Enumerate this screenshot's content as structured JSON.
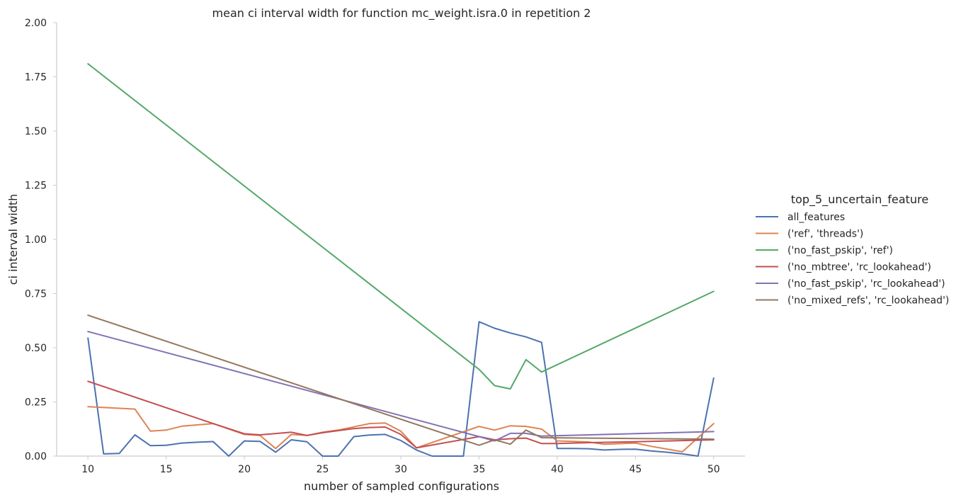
{
  "chart_data": {
    "type": "line",
    "title": "mean ci interval width for function mc_weight.isra.0 in repetition 2",
    "xlabel": "number of sampled configurations",
    "ylabel": "ci interval width",
    "xlim": [
      8,
      52
    ],
    "ylim": [
      0,
      2.0
    ],
    "x_ticks": [
      10,
      15,
      20,
      25,
      30,
      35,
      40,
      45,
      50
    ],
    "x_tick_labels": [
      "10",
      "15",
      "20",
      "25",
      "30",
      "35",
      "40",
      "45",
      "50"
    ],
    "y_ticks": [
      0,
      0.25,
      0.5,
      0.75,
      1.0,
      1.25,
      1.5,
      1.75,
      2.0
    ],
    "y_tick_labels": [
      "0.00",
      "0.25",
      "0.50",
      "0.75",
      "1.00",
      "1.25",
      "1.50",
      "1.75",
      "2.00"
    ],
    "grid": false,
    "legend": {
      "title": "top_5_uncertain_feature",
      "placement": "right"
    },
    "series": [
      {
        "name": "all_features",
        "color": "#4c72b0",
        "x": [
          10,
          11,
          12,
          13,
          14,
          15,
          16,
          17,
          18,
          19,
          20,
          21,
          22,
          23,
          24,
          25,
          26,
          27,
          28,
          29,
          30,
          31,
          32,
          33,
          34,
          35,
          36,
          37,
          38,
          39,
          40,
          41,
          42,
          43,
          44,
          45,
          46,
          47,
          48,
          49,
          50
        ],
        "y": [
          0.545,
          0.01,
          0.012,
          0.098,
          0.048,
          0.05,
          0.06,
          0.064,
          0.067,
          0.0,
          0.07,
          0.068,
          0.018,
          0.075,
          0.066,
          0.0,
          0.0,
          0.09,
          0.097,
          0.1,
          0.072,
          0.028,
          0.0,
          0.0,
          0.0,
          0.62,
          0.59,
          0.568,
          0.55,
          0.525,
          0.035,
          0.035,
          0.034,
          0.028,
          0.031,
          0.032,
          0.024,
          0.018,
          0.01,
          0.0,
          0.36
        ]
      },
      {
        "name": "('ref', 'threads')",
        "color": "#dd8452",
        "x": [
          10,
          13,
          14,
          15,
          16,
          18,
          20,
          21,
          22,
          23,
          24,
          25,
          26,
          27,
          28,
          29,
          30,
          31,
          35,
          36,
          37,
          38,
          39,
          40,
          41,
          42,
          43,
          45,
          46,
          48,
          50
        ],
        "y": [
          0.228,
          0.217,
          0.115,
          0.12,
          0.138,
          0.15,
          0.1,
          0.095,
          0.035,
          0.1,
          0.095,
          0.11,
          0.12,
          0.135,
          0.15,
          0.153,
          0.115,
          0.038,
          0.137,
          0.12,
          0.14,
          0.137,
          0.125,
          0.07,
          0.068,
          0.065,
          0.055,
          0.06,
          0.045,
          0.02,
          0.15
        ]
      },
      {
        "name": "('no_fast_pskip', 'ref')",
        "color": "#55a868",
        "x": [
          10,
          35,
          36,
          37,
          38,
          39,
          50
        ],
        "y": [
          1.81,
          0.4,
          0.325,
          0.31,
          0.445,
          0.388,
          0.76
        ]
      },
      {
        "name": "('no_mbtree', 'rc_lookahead')",
        "color": "#c44e52",
        "x": [
          10,
          18,
          20,
          21,
          23,
          24,
          25,
          27,
          28,
          29,
          30,
          31,
          35,
          36,
          37,
          38,
          39,
          40,
          42,
          45,
          50
        ],
        "y": [
          0.345,
          0.15,
          0.103,
          0.098,
          0.11,
          0.095,
          0.108,
          0.127,
          0.132,
          0.134,
          0.1,
          0.038,
          0.09,
          0.075,
          0.08,
          0.083,
          0.058,
          0.058,
          0.062,
          0.066,
          0.075
        ]
      },
      {
        "name": "('no_fast_pskip', 'rc_lookahead')",
        "color": "#8172b3",
        "x": [
          10,
          35,
          36,
          37,
          38,
          39,
          50
        ],
        "y": [
          0.575,
          0.09,
          0.07,
          0.105,
          0.105,
          0.092,
          0.113
        ]
      },
      {
        "name": "('no_mixed_refs', 'rc_lookahead')",
        "color": "#937860",
        "x": [
          10,
          35,
          36,
          37,
          38,
          39,
          50
        ],
        "y": [
          0.65,
          0.05,
          0.075,
          0.055,
          0.12,
          0.085,
          0.078
        ]
      }
    ]
  }
}
